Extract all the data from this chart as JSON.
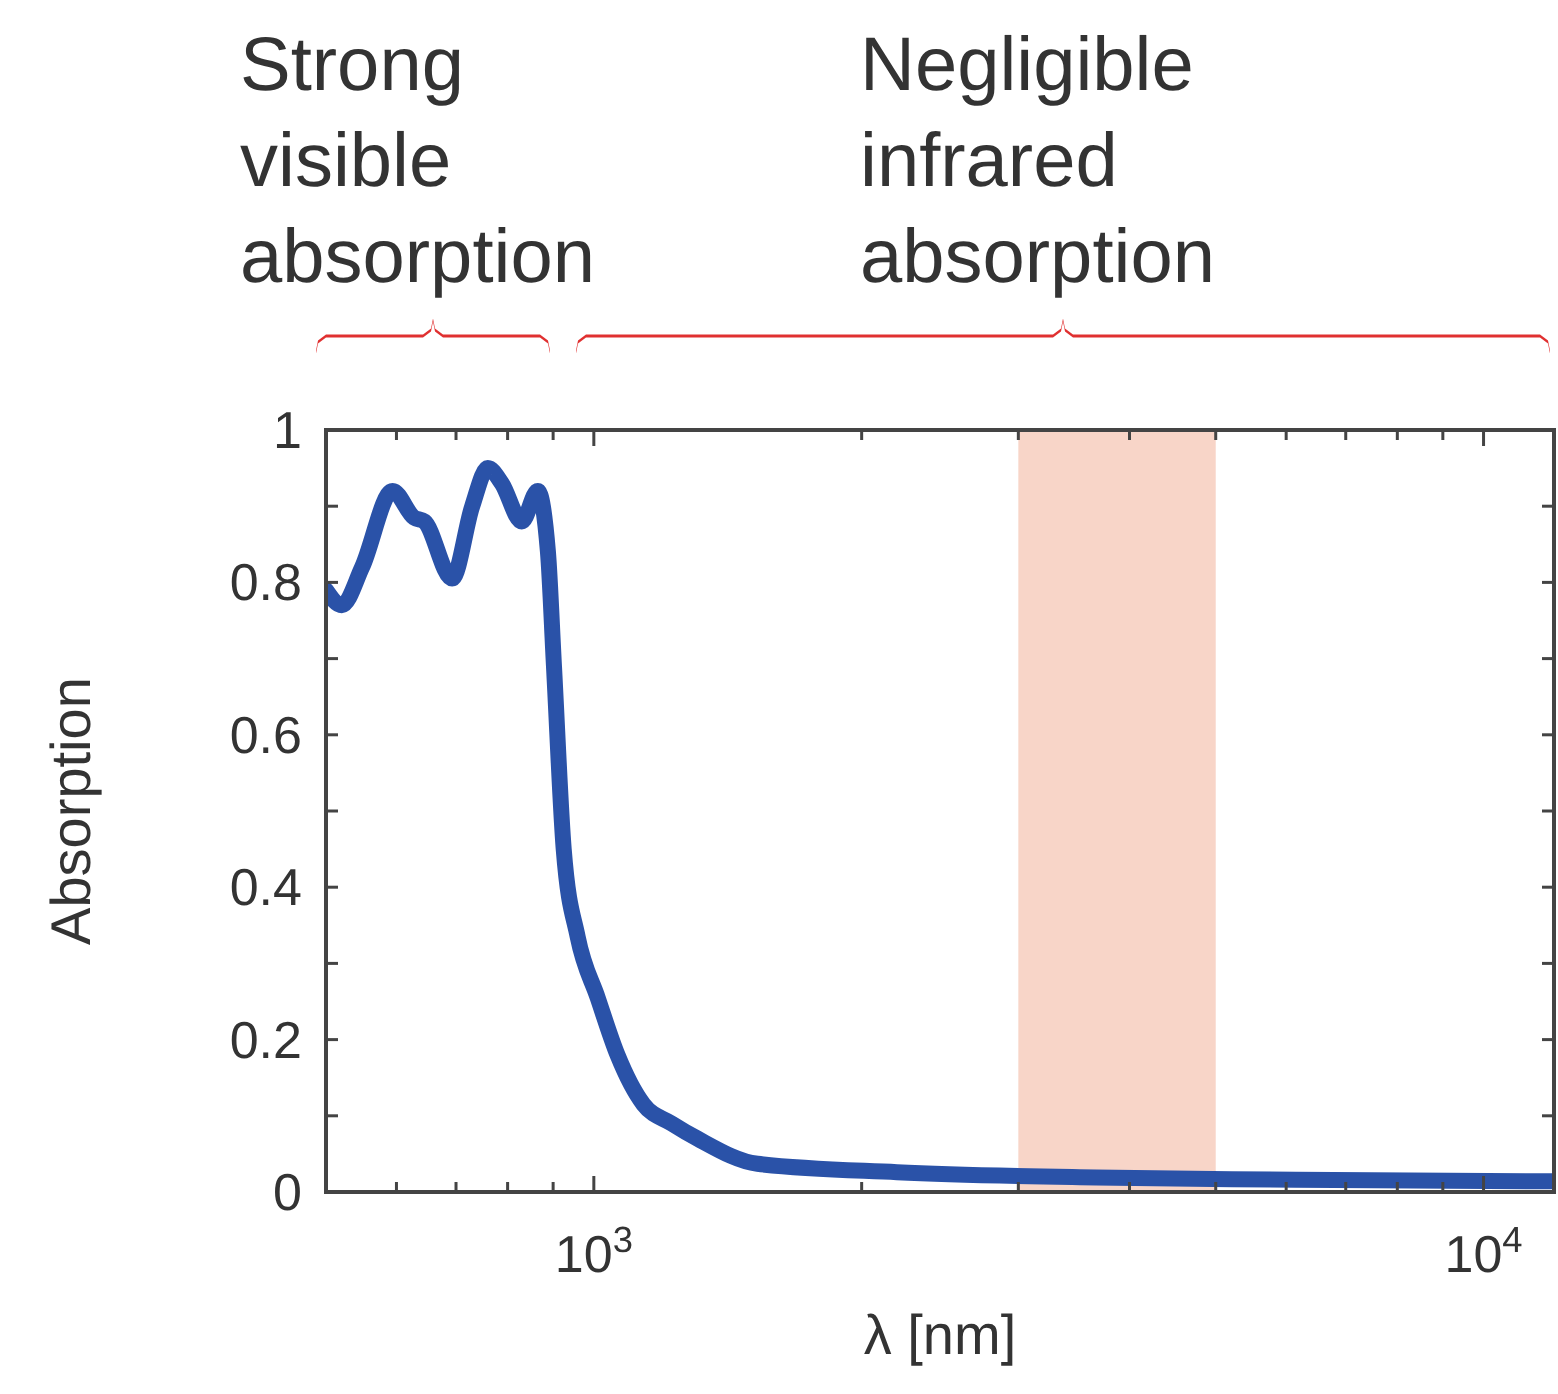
{
  "chart_data": {
    "type": "line",
    "xlabel": "λ [nm]",
    "ylabel": "Absorption",
    "log": "x",
    "xlim": [
      500,
      12000
    ],
    "ylim": [
      0,
      1
    ],
    "xticks": [
      {
        "value": 600,
        "label": null
      },
      {
        "value": 700,
        "label": null
      },
      {
        "value": 800,
        "label": null
      },
      {
        "value": 900,
        "label": null
      },
      {
        "value": 1000,
        "label": "10$^{3}$"
      },
      {
        "value": 2000,
        "label": null
      },
      {
        "value": 3000,
        "label": null
      },
      {
        "value": 4000,
        "label": null
      },
      {
        "value": 5000,
        "label": null
      },
      {
        "value": 6000,
        "label": null
      },
      {
        "value": 7000,
        "label": null
      },
      {
        "value": 8000,
        "label": null
      },
      {
        "value": 9000,
        "label": null
      },
      {
        "value": 10000,
        "label": "10$^{4}$"
      }
    ],
    "yticks": [
      0,
      {
        "value": 0.1,
        "label": null
      },
      0.2,
      {
        "value": 0.3,
        "label": null
      },
      0.4,
      {
        "value": 0.5,
        "label": null
      },
      0.6,
      {
        "value": 0.7,
        "label": null
      },
      0.8,
      {
        "value": 0.9,
        "label": null
      },
      1
    ],
    "grid": false,
    "marker": "none",
    "line_style": "solid",
    "bands": [
      {
        "axis": "x",
        "from": 3000,
        "to": 5000,
        "color": "#f8d5c8"
      }
    ],
    "annotations": [
      "Strong visible absorption",
      "Negligible infrared absorption"
    ],
    "series": [
      {
        "color": "#2a52a8",
        "x": [
          500,
          521,
          549,
          594,
          628,
          645,
          693,
          730,
          760,
          788,
          830,
          865,
          888,
          902,
          925,
          959,
          1010,
          1063,
          1137,
          1223,
          1308,
          1527,
          2191,
          3672,
          6150,
          11970
        ],
        "values": [
          0.79,
          0.77,
          0.82,
          0.92,
          0.885,
          0.88,
          0.805,
          0.9,
          0.95,
          0.93,
          0.88,
          0.92,
          0.84,
          0.69,
          0.45,
          0.335,
          0.255,
          0.18,
          0.115,
          0.09,
          0.07,
          0.037,
          0.026,
          0.019,
          0.016,
          0.014
        ]
      }
    ]
  }
}
